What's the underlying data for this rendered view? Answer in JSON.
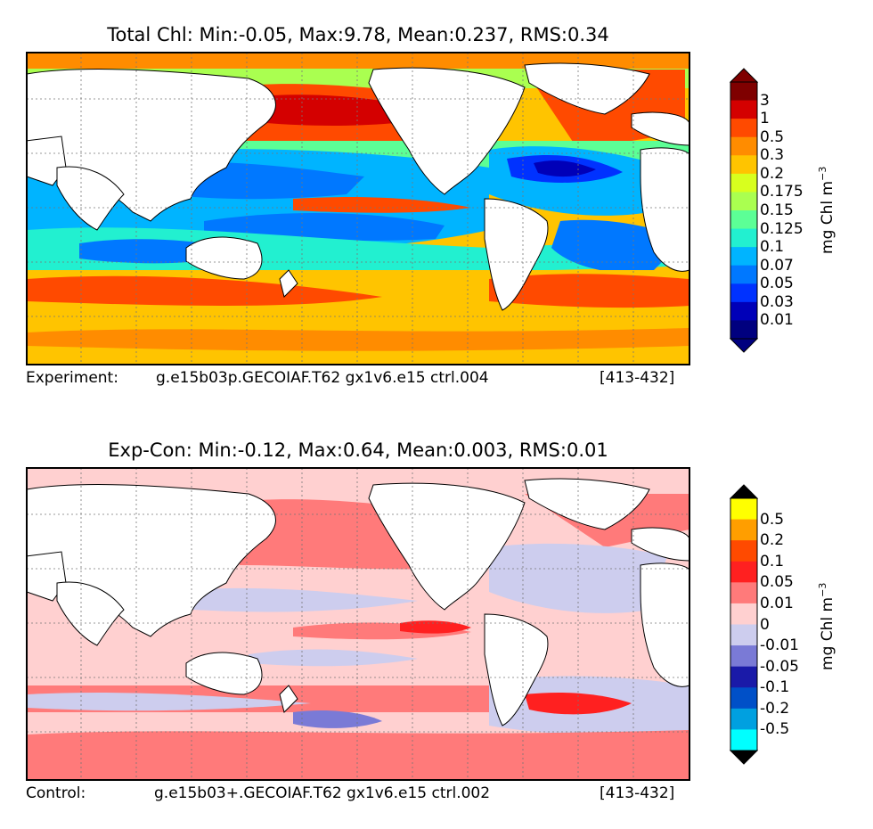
{
  "panels": [
    {
      "title": "Total Chl: Min:-0.05, Max:9.78, Mean:0.237, RMS:0.34",
      "meta_label": "Experiment:",
      "meta_case": "g.e15b03p.GECOIAF.T62 gx1v6.e15 ctrl.004",
      "meta_range": "[413-432]",
      "colorbar": {
        "unit_main": "mg Chl m",
        "unit_sup": "−3",
        "labels": [
          "3",
          "1",
          "0.5",
          "0.3",
          "0.2",
          "0.175",
          "0.15",
          "0.125",
          "0.1",
          "0.07",
          "0.05",
          "0.03",
          "0.01"
        ],
        "colors": [
          "#7f0000",
          "#d40000",
          "#ff4a00",
          "#ff8c00",
          "#ffc400",
          "#d8ff1e",
          "#aaff50",
          "#5cff96",
          "#22f0d0",
          "#00b4ff",
          "#0078ff",
          "#0032ff",
          "#0000b8",
          "#00007f"
        ],
        "over_color": "#7f0000",
        "under_color": "#00007f"
      }
    },
    {
      "title": "Exp-Con: Min:-0.12, Max:0.64, Mean:0.003, RMS:0.01",
      "meta_label": "Control:",
      "meta_case": "g.e15b03+.GECOIAF.T62 gx1v6.e15 ctrl.002",
      "meta_range": "[413-432]",
      "colorbar": {
        "unit_main": "mg Chl m",
        "unit_sup": "−3",
        "labels": [
          "0.5",
          "0.2",
          "0.1",
          "0.05",
          "0.01",
          "0",
          "-0.01",
          "-0.05",
          "-0.1",
          "-0.2",
          "-0.5"
        ],
        "colors": [
          "#ffff00",
          "#ff9e00",
          "#ff4a00",
          "#ff2020",
          "#ff7a7a",
          "#ffd0d0",
          "#cdcdee",
          "#7a7ad6",
          "#1a1aa8",
          "#0050c8",
          "#00a0e0",
          "#00ffff"
        ],
        "over_color": "#000000",
        "under_color": "#000000"
      }
    }
  ]
}
